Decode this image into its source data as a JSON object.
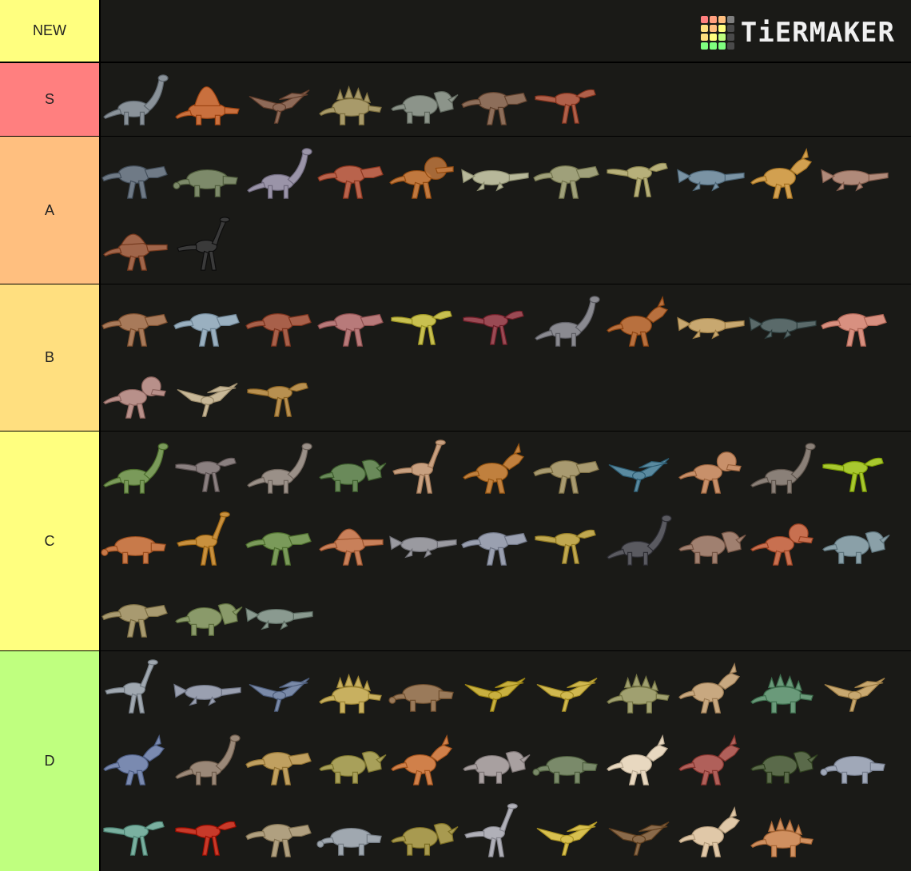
{
  "branding": {
    "logo_text": "TiERMAKER",
    "logo_colors": [
      "#ff7f7f",
      "#ff9f7f",
      "#ffbf7f",
      "#7f7f7f",
      "#ffdf7f",
      "#ffbf7f",
      "#ffff7f",
      "#4a4a4a",
      "#ffdf7f",
      "#ffff7f",
      "#bfff7f",
      "#4a4a4a",
      "#7fff7f",
      "#7fff7f",
      "#7fff7f",
      "#4a4a4a"
    ]
  },
  "tiers": [
    {
      "label": "NEW",
      "color": "#ffff7f",
      "rows": 0,
      "creatures": []
    },
    {
      "label": "S",
      "color": "#ff7f7f",
      "rows": 1,
      "creatures": [
        {
          "icon": "sauropod-icon",
          "color": "#8a9299"
        },
        {
          "icon": "dimetrodon-icon",
          "color": "#c9703e"
        },
        {
          "icon": "pterosaur-icon",
          "color": "#8e6a58"
        },
        {
          "icon": "stegosaur-icon",
          "color": "#a89a6a"
        },
        {
          "icon": "ceratopsian-icon",
          "color": "#8c948a"
        },
        {
          "icon": "theropod-icon",
          "color": "#8d6e5a"
        },
        {
          "icon": "raptor-icon",
          "color": "#b0604a"
        }
      ]
    },
    {
      "label": "A",
      "color": "#ffbf7f",
      "rows": 2,
      "creatures": [
        {
          "icon": "theropod-icon",
          "color": "#6f7a86"
        },
        {
          "icon": "ankylosaur-icon",
          "color": "#7d8a6a"
        },
        {
          "icon": "sauropod-icon",
          "color": "#9a94a8"
        },
        {
          "icon": "theropod-icon",
          "color": "#b9634c"
        },
        {
          "icon": "frilled-dino-icon",
          "color": "#c0783e"
        },
        {
          "icon": "marine-reptile-icon",
          "color": "#b7b89a"
        },
        {
          "icon": "theropod-icon",
          "color": "#9fa07a"
        },
        {
          "icon": "raptor-icon",
          "color": "#b7b07a"
        },
        {
          "icon": "marine-reptile-icon",
          "color": "#7a93a4"
        },
        {
          "icon": "hadrosaur-icon",
          "color": "#d2a050"
        },
        {
          "icon": "marine-reptile-icon",
          "color": "#b08a7a"
        },
        {
          "icon": "spinosaur-icon",
          "color": "#a0654a"
        },
        {
          "icon": "ornithomimid-icon",
          "color": "#3a3a3a"
        }
      ]
    },
    {
      "label": "B",
      "color": "#ffdf7f",
      "rows": 2,
      "creatures": [
        {
          "icon": "theropod-icon",
          "color": "#a87a5a"
        },
        {
          "icon": "theropod-icon",
          "color": "#9ab0c0"
        },
        {
          "icon": "theropod-icon",
          "color": "#a8604a"
        },
        {
          "icon": "theropod-icon",
          "color": "#b87a7a"
        },
        {
          "icon": "raptor-icon",
          "color": "#c8c050"
        },
        {
          "icon": "raptor-icon",
          "color": "#9a4a54"
        },
        {
          "icon": "sauropod-icon",
          "color": "#8a8a90"
        },
        {
          "icon": "hadrosaur-icon",
          "color": "#b8703e"
        },
        {
          "icon": "marine-reptile-icon",
          "color": "#c8a870"
        },
        {
          "icon": "marine-reptile-icon",
          "color": "#5a6a6a"
        },
        {
          "icon": "theropod-icon",
          "color": "#d89080"
        },
        {
          "icon": "pachycephalosaur-icon",
          "color": "#b8908a"
        },
        {
          "icon": "pterosaur-icon",
          "color": "#c8b898"
        },
        {
          "icon": "raptor-icon",
          "color": "#b89050"
        }
      ]
    },
    {
      "label": "C",
      "color": "#ffff7f",
      "rows": 3,
      "creatures": [
        {
          "icon": "sauropod-icon",
          "color": "#7a9a5a"
        },
        {
          "icon": "raptor-icon",
          "color": "#8a8080"
        },
        {
          "icon": "sauropod-icon",
          "color": "#9a9088"
        },
        {
          "icon": "ceratopsian-icon",
          "color": "#6a8a5a"
        },
        {
          "icon": "ornithomimid-icon",
          "color": "#c8a080"
        },
        {
          "icon": "hadrosaur-icon",
          "color": "#c0803e"
        },
        {
          "icon": "theropod-icon",
          "color": "#a89a70"
        },
        {
          "icon": "pterosaur-icon",
          "color": "#5a8aa0"
        },
        {
          "icon": "pachycephalosaur-icon",
          "color": "#c8906a"
        },
        {
          "icon": "sauropod-icon",
          "color": "#8a8078"
        },
        {
          "icon": "raptor-icon",
          "color": "#a8c830"
        },
        {
          "icon": "ankylosaur-icon",
          "color": "#c87a4a"
        },
        {
          "icon": "ornithomimid-icon",
          "color": "#c8903e"
        },
        {
          "icon": "theropod-icon",
          "color": "#7a9a5a"
        },
        {
          "icon": "spinosaur-icon",
          "color": "#c8805a"
        },
        {
          "icon": "marine-reptile-icon",
          "color": "#9a9aa0"
        },
        {
          "icon": "theropod-icon",
          "color": "#9aa0b0"
        },
        {
          "icon": "raptor-icon",
          "color": "#c0a850"
        },
        {
          "icon": "sauropod-icon",
          "color": "#5a5a60"
        },
        {
          "icon": "ceratopsian-icon",
          "color": "#a08070"
        },
        {
          "icon": "pachycephalosaur-icon",
          "color": "#c87050"
        },
        {
          "icon": "ceratopsian-icon",
          "color": "#8aa0a8"
        },
        {
          "icon": "theropod-icon",
          "color": "#a89a70"
        },
        {
          "icon": "ceratopsian-icon",
          "color": "#8a9a6a"
        },
        {
          "icon": "marine-reptile-icon",
          "color": "#8a9a90"
        }
      ]
    },
    {
      "label": "D",
      "color": "#bfff7f",
      "rows": 3,
      "creatures": [
        {
          "icon": "ornithomimid-icon",
          "color": "#a0a8b0"
        },
        {
          "icon": "marine-reptile-icon",
          "color": "#9aa0b0"
        },
        {
          "icon": "pterosaur-icon",
          "color": "#7a8aa8"
        },
        {
          "icon": "stegosaur-icon",
          "color": "#c8b060"
        },
        {
          "icon": "ankylosaur-icon",
          "color": "#9a7a5a"
        },
        {
          "icon": "pterosaur-icon",
          "color": "#c8b040"
        },
        {
          "icon": "pterosaur-icon",
          "color": "#d0b850"
        },
        {
          "icon": "stegosaur-icon",
          "color": "#a0a070"
        },
        {
          "icon": "hadrosaur-icon",
          "color": "#c8a880"
        },
        {
          "icon": "stegosaur-icon",
          "color": "#6a9a7a"
        },
        {
          "icon": "pterosaur-icon",
          "color": "#c8a870"
        },
        {
          "icon": "hadrosaur-icon",
          "color": "#7a8ab0"
        },
        {
          "icon": "sauropod-icon",
          "color": "#9a8878"
        },
        {
          "icon": "theropod-icon",
          "color": "#c0a060"
        },
        {
          "icon": "ceratopsian-icon",
          "color": "#a8a05a"
        },
        {
          "icon": "hadrosaur-icon",
          "color": "#d0804a"
        },
        {
          "icon": "ceratopsian-icon",
          "color": "#a8a0a0"
        },
        {
          "icon": "ankylosaur-icon",
          "color": "#7a8a6a"
        },
        {
          "icon": "hadrosaur-icon",
          "color": "#e8d8c0"
        },
        {
          "icon": "hadrosaur-icon",
          "color": "#b0605a"
        },
        {
          "icon": "ceratopsian-icon",
          "color": "#5a6a4a"
        },
        {
          "icon": "ankylosaur-icon",
          "color": "#a0a8b8"
        },
        {
          "icon": "raptor-icon",
          "color": "#7ab0a0"
        },
        {
          "icon": "raptor-icon",
          "color": "#c83a2a"
        },
        {
          "icon": "theropod-icon",
          "color": "#b0a080"
        },
        {
          "icon": "ankylosaur-icon",
          "color": "#a0a8b0"
        },
        {
          "icon": "ceratopsian-icon",
          "color": "#a89a50"
        },
        {
          "icon": "ornithomimid-icon",
          "color": "#b0b0b8"
        },
        {
          "icon": "pterosaur-icon",
          "color": "#d8c050"
        },
        {
          "icon": "pterosaur-icon",
          "color": "#8a6a4a"
        },
        {
          "icon": "hadrosaur-icon",
          "color": "#e0c8a8"
        },
        {
          "icon": "stegosaur-icon",
          "color": "#d09060"
        }
      ]
    }
  ]
}
